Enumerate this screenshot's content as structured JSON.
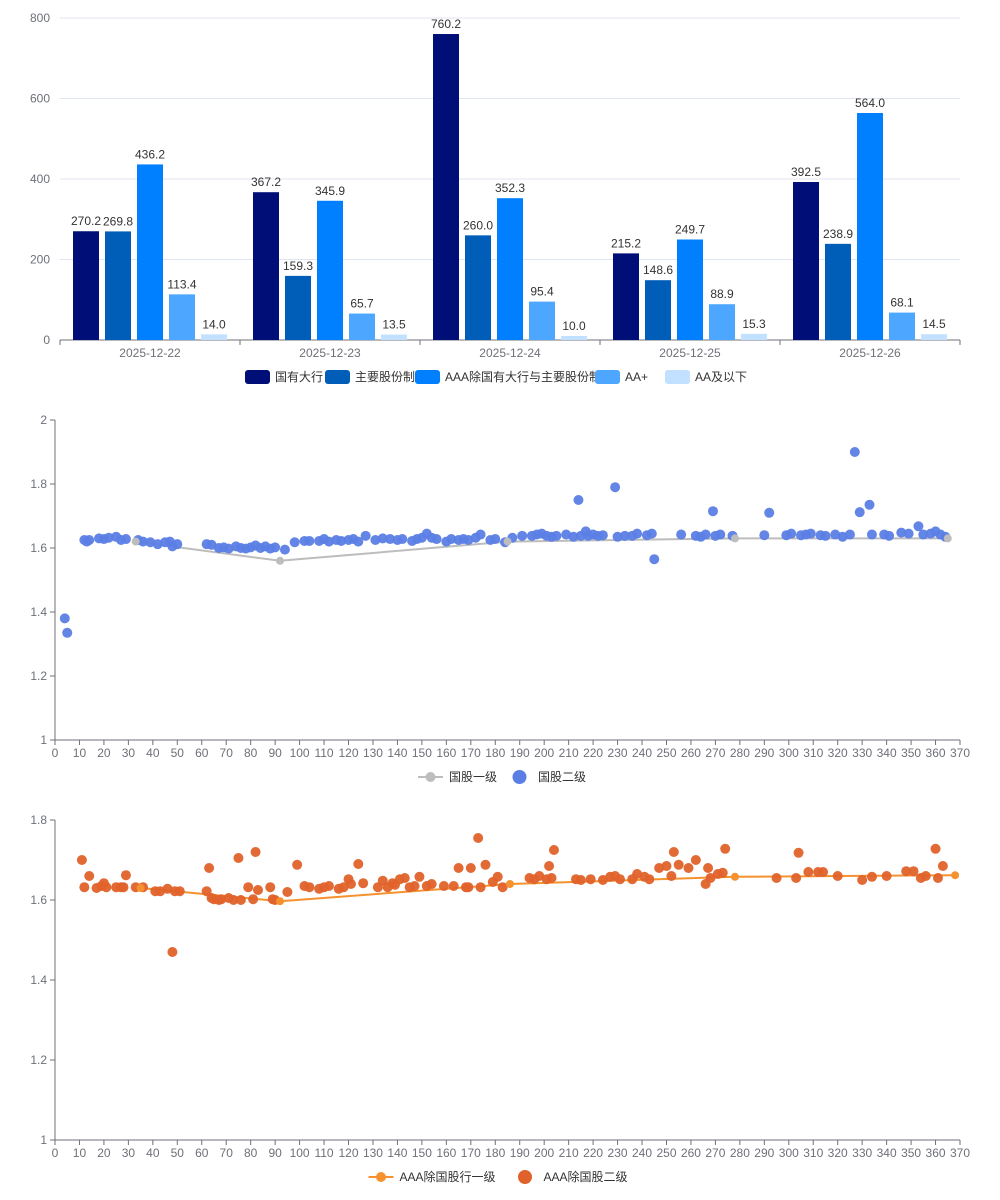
{
  "chart_data": [
    {
      "type": "bar",
      "categories": [
        "2025-12-22",
        "2025-12-23",
        "2025-12-24",
        "2025-12-25",
        "2025-12-26"
      ],
      "series": [
        {
          "name": "国有大行",
          "color": "#000f78",
          "values": [
            270.2,
            367.2,
            760.2,
            215.2,
            392.5
          ]
        },
        {
          "name": "主要股份制",
          "color": "#005eb8",
          "values": [
            269.8,
            159.3,
            260.0,
            148.6,
            238.9
          ]
        },
        {
          "name": "AAA除国有大行与主要股份制",
          "color": "#0080ff",
          "values": [
            436.2,
            345.9,
            352.3,
            249.7,
            564.0
          ]
        },
        {
          "name": "AA+",
          "color": "#4da6ff",
          "values": [
            113.4,
            65.7,
            95.4,
            88.9,
            68.1
          ]
        },
        {
          "name": "AA及以下",
          "color": "#c2e0ff",
          "values": [
            14.0,
            13.5,
            10.0,
            15.3,
            14.5
          ]
        }
      ],
      "ylim": [
        0,
        800
      ],
      "yticks": [
        0,
        200,
        400,
        600,
        800
      ],
      "legend_position": "bottom"
    },
    {
      "type": "scatter",
      "xlim": [
        0,
        370
      ],
      "ylim": [
        1,
        2
      ],
      "xticks": [
        0,
        10,
        20,
        30,
        40,
        50,
        60,
        70,
        80,
        90,
        100,
        110,
        120,
        130,
        140,
        150,
        160,
        170,
        180,
        190,
        200,
        210,
        220,
        230,
        240,
        250,
        260,
        270,
        280,
        290,
        300,
        310,
        320,
        330,
        340,
        350,
        360,
        370
      ],
      "yticks": [
        1,
        1.2,
        1.4,
        1.6,
        1.8,
        2
      ],
      "line_series": {
        "name": "国股一级",
        "color": "#bdbdbd",
        "points": [
          [
            33,
            1.62
          ],
          [
            92,
            1.56
          ],
          [
            185,
            1.62
          ],
          [
            278,
            1.63
          ],
          [
            365,
            1.63
          ]
        ]
      },
      "scatter_series": {
        "name": "国股二级",
        "color": "#5b7ee5",
        "points": [
          [
            4,
            1.38
          ],
          [
            5,
            1.335
          ],
          [
            12,
            1.625
          ],
          [
            13,
            1.62
          ],
          [
            14,
            1.625
          ],
          [
            18,
            1.63
          ],
          [
            20,
            1.628
          ],
          [
            22,
            1.632
          ],
          [
            25,
            1.635
          ],
          [
            27,
            1.625
          ],
          [
            29,
            1.628
          ],
          [
            34,
            1.625
          ],
          [
            36,
            1.62
          ],
          [
            39,
            1.618
          ],
          [
            42,
            1.612
          ],
          [
            45,
            1.618
          ],
          [
            47,
            1.62
          ],
          [
            48,
            1.605
          ],
          [
            50,
            1.612
          ],
          [
            62,
            1.612
          ],
          [
            64,
            1.61
          ],
          [
            67,
            1.6
          ],
          [
            69,
            1.602
          ],
          [
            71,
            1.598
          ],
          [
            74,
            1.605
          ],
          [
            76,
            1.6
          ],
          [
            78,
            1.598
          ],
          [
            80,
            1.602
          ],
          [
            82,
            1.608
          ],
          [
            84,
            1.6
          ],
          [
            86,
            1.605
          ],
          [
            88,
            1.598
          ],
          [
            90,
            1.602
          ],
          [
            94,
            1.595
          ],
          [
            98,
            1.618
          ],
          [
            102,
            1.622
          ],
          [
            104,
            1.622
          ],
          [
            108,
            1.622
          ],
          [
            110,
            1.628
          ],
          [
            112,
            1.62
          ],
          [
            115,
            1.625
          ],
          [
            117,
            1.622
          ],
          [
            120,
            1.625
          ],
          [
            122,
            1.628
          ],
          [
            124,
            1.62
          ],
          [
            127,
            1.638
          ],
          [
            131,
            1.625
          ],
          [
            134,
            1.63
          ],
          [
            137,
            1.628
          ],
          [
            140,
            1.625
          ],
          [
            142,
            1.628
          ],
          [
            146,
            1.622
          ],
          [
            148,
            1.628
          ],
          [
            150,
            1.632
          ],
          [
            152,
            1.645
          ],
          [
            154,
            1.632
          ],
          [
            156,
            1.628
          ],
          [
            160,
            1.62
          ],
          [
            162,
            1.628
          ],
          [
            165,
            1.625
          ],
          [
            167,
            1.628
          ],
          [
            169,
            1.625
          ],
          [
            172,
            1.632
          ],
          [
            174,
            1.642
          ],
          [
            178,
            1.625
          ],
          [
            180,
            1.628
          ],
          [
            184,
            1.618
          ],
          [
            187,
            1.632
          ],
          [
            191,
            1.638
          ],
          [
            195,
            1.638
          ],
          [
            197,
            1.642
          ],
          [
            199,
            1.645
          ],
          [
            201,
            1.638
          ],
          [
            203,
            1.635
          ],
          [
            205,
            1.638
          ],
          [
            209,
            1.642
          ],
          [
            212,
            1.635
          ],
          [
            215,
            1.638
          ],
          [
            217,
            1.652
          ],
          [
            214,
            1.75
          ],
          [
            218,
            1.638
          ],
          [
            220,
            1.642
          ],
          [
            222,
            1.638
          ],
          [
            224,
            1.64
          ],
          [
            229,
            1.79
          ],
          [
            230,
            1.635
          ],
          [
            233,
            1.638
          ],
          [
            236,
            1.638
          ],
          [
            238,
            1.645
          ],
          [
            242,
            1.64
          ],
          [
            244,
            1.645
          ],
          [
            245,
            1.565
          ],
          [
            256,
            1.642
          ],
          [
            262,
            1.638
          ],
          [
            264,
            1.635
          ],
          [
            266,
            1.642
          ],
          [
            269,
            1.715
          ],
          [
            270,
            1.638
          ],
          [
            272,
            1.642
          ],
          [
            277,
            1.638
          ],
          [
            290,
            1.64
          ],
          [
            292,
            1.71
          ],
          [
            299,
            1.64
          ],
          [
            301,
            1.645
          ],
          [
            305,
            1.64
          ],
          [
            307,
            1.642
          ],
          [
            309,
            1.645
          ],
          [
            313,
            1.64
          ],
          [
            315,
            1.638
          ],
          [
            319,
            1.642
          ],
          [
            322,
            1.635
          ],
          [
            325,
            1.642
          ],
          [
            327,
            1.9
          ],
          [
            329,
            1.712
          ],
          [
            333,
            1.735
          ],
          [
            334,
            1.642
          ],
          [
            339,
            1.642
          ],
          [
            341,
            1.638
          ],
          [
            346,
            1.648
          ],
          [
            349,
            1.645
          ],
          [
            353,
            1.668
          ],
          [
            355,
            1.642
          ],
          [
            358,
            1.645
          ],
          [
            360,
            1.652
          ],
          [
            362,
            1.642
          ],
          [
            364,
            1.635
          ]
        ]
      }
    },
    {
      "type": "scatter",
      "xlim": [
        0,
        370
      ],
      "ylim": [
        1,
        1.8
      ],
      "xticks": [
        0,
        10,
        20,
        30,
        40,
        50,
        60,
        70,
        80,
        90,
        100,
        110,
        120,
        130,
        140,
        150,
        160,
        170,
        180,
        190,
        200,
        210,
        220,
        230,
        240,
        250,
        260,
        270,
        280,
        290,
        300,
        310,
        320,
        330,
        340,
        350,
        360,
        370
      ],
      "yticks": [
        1,
        1.2,
        1.4,
        1.6,
        1.8
      ],
      "line_series": {
        "name": "AAA除国股行一级",
        "color": "#f5922f",
        "points": [
          [
            35,
            1.63
          ],
          [
            92,
            1.597
          ],
          [
            186,
            1.64
          ],
          [
            278,
            1.658
          ],
          [
            368,
            1.662
          ]
        ]
      },
      "scatter_series": {
        "name": "AAA除国股二级",
        "color": "#e0622a",
        "points": [
          [
            11,
            1.7
          ],
          [
            12,
            1.632
          ],
          [
            14,
            1.66
          ],
          [
            17,
            1.63
          ],
          [
            19,
            1.635
          ],
          [
            20,
            1.642
          ],
          [
            21,
            1.632
          ],
          [
            25,
            1.632
          ],
          [
            27,
            1.632
          ],
          [
            28,
            1.632
          ],
          [
            29,
            1.662
          ],
          [
            33,
            1.632
          ],
          [
            36,
            1.632
          ],
          [
            41,
            1.622
          ],
          [
            43,
            1.622
          ],
          [
            46,
            1.628
          ],
          [
            48,
            1.47
          ],
          [
            49,
            1.622
          ],
          [
            51,
            1.622
          ],
          [
            62,
            1.622
          ],
          [
            63,
            1.68
          ],
          [
            64,
            1.605
          ],
          [
            65,
            1.602
          ],
          [
            67,
            1.6
          ],
          [
            68,
            1.602
          ],
          [
            71,
            1.605
          ],
          [
            73,
            1.6
          ],
          [
            75,
            1.705
          ],
          [
            76,
            1.6
          ],
          [
            79,
            1.632
          ],
          [
            81,
            1.602
          ],
          [
            82,
            1.72
          ],
          [
            83,
            1.625
          ],
          [
            88,
            1.632
          ],
          [
            89,
            1.602
          ],
          [
            90,
            1.6
          ],
          [
            95,
            1.62
          ],
          [
            99,
            1.688
          ],
          [
            102,
            1.635
          ],
          [
            104,
            1.632
          ],
          [
            108,
            1.628
          ],
          [
            110,
            1.632
          ],
          [
            112,
            1.635
          ],
          [
            116,
            1.628
          ],
          [
            118,
            1.632
          ],
          [
            120,
            1.652
          ],
          [
            121,
            1.64
          ],
          [
            124,
            1.69
          ],
          [
            126,
            1.642
          ],
          [
            132,
            1.632
          ],
          [
            134,
            1.648
          ],
          [
            136,
            1.632
          ],
          [
            138,
            1.642
          ],
          [
            139,
            1.638
          ],
          [
            141,
            1.652
          ],
          [
            143,
            1.655
          ],
          [
            145,
            1.632
          ],
          [
            147,
            1.635
          ],
          [
            149,
            1.658
          ],
          [
            152,
            1.635
          ],
          [
            154,
            1.64
          ],
          [
            159,
            1.635
          ],
          [
            163,
            1.635
          ],
          [
            165,
            1.68
          ],
          [
            168,
            1.632
          ],
          [
            169,
            1.632
          ],
          [
            170,
            1.68
          ],
          [
            173,
            1.755
          ],
          [
            174,
            1.632
          ],
          [
            176,
            1.688
          ],
          [
            179,
            1.645
          ],
          [
            181,
            1.658
          ],
          [
            183,
            1.632
          ],
          [
            194,
            1.655
          ],
          [
            196,
            1.652
          ],
          [
            198,
            1.66
          ],
          [
            201,
            1.652
          ],
          [
            202,
            1.685
          ],
          [
            203,
            1.655
          ],
          [
            204,
            1.725
          ],
          [
            213,
            1.652
          ],
          [
            215,
            1.65
          ],
          [
            219,
            1.652
          ],
          [
            224,
            1.65
          ],
          [
            227,
            1.658
          ],
          [
            229,
            1.66
          ],
          [
            231,
            1.652
          ],
          [
            236,
            1.652
          ],
          [
            238,
            1.665
          ],
          [
            241,
            1.658
          ],
          [
            243,
            1.652
          ],
          [
            247,
            1.68
          ],
          [
            250,
            1.685
          ],
          [
            252,
            1.66
          ],
          [
            253,
            1.72
          ],
          [
            255,
            1.688
          ],
          [
            259,
            1.68
          ],
          [
            262,
            1.7
          ],
          [
            266,
            1.64
          ],
          [
            267,
            1.68
          ],
          [
            268,
            1.655
          ],
          [
            271,
            1.665
          ],
          [
            273,
            1.668
          ],
          [
            274,
            1.728
          ],
          [
            295,
            1.655
          ],
          [
            303,
            1.655
          ],
          [
            304,
            1.718
          ],
          [
            308,
            1.67
          ],
          [
            312,
            1.67
          ],
          [
            314,
            1.67
          ],
          [
            320,
            1.66
          ],
          [
            330,
            1.65
          ],
          [
            334,
            1.658
          ],
          [
            340,
            1.66
          ],
          [
            348,
            1.672
          ],
          [
            351,
            1.672
          ],
          [
            354,
            1.655
          ],
          [
            356,
            1.66
          ],
          [
            360,
            1.728
          ],
          [
            361,
            1.655
          ],
          [
            363,
            1.685
          ]
        ]
      }
    }
  ]
}
